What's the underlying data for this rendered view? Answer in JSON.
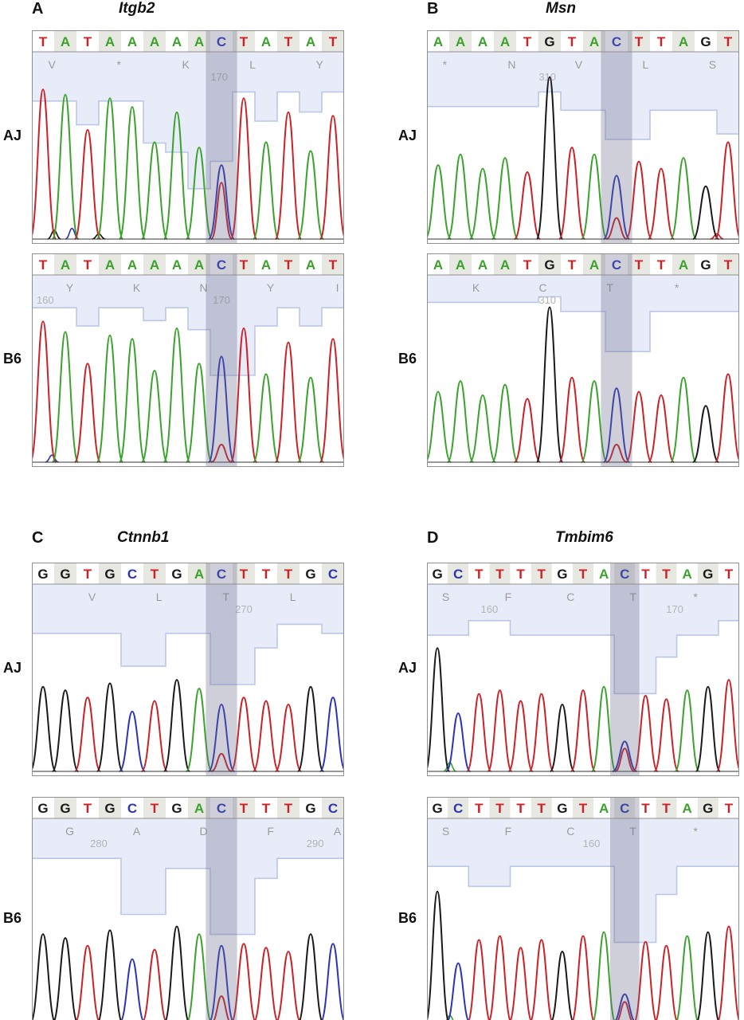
{
  "figure_type": "sanger-sequencing-chromatograms",
  "colors": {
    "A": "#3aa32c",
    "T": "#cc2127",
    "G": "#1a1a1a",
    "C": "#2d35b5",
    "quality_fill": "#e8ecf8",
    "quality_edge": "#bcc7e8",
    "highlight": "rgba(105,105,140,0.32)",
    "cell_even": "#ffffff",
    "cell_odd": "#e8e8e2",
    "aa_text": "#9b9b9b",
    "pos_text": "#b4b4b4",
    "box_border": "#8f8f8f",
    "baseline": "#333333"
  },
  "panels": [
    {
      "label": "A",
      "gene": "Itgb2",
      "highlight_index": 8,
      "traces": [
        {
          "strain": "AJ",
          "sequence": "TATAAAAACTATAT",
          "peak_heights": [
            0.85,
            0.82,
            0.62,
            0.8,
            0.75,
            0.55,
            0.72,
            0.52,
            0.42,
            0.8,
            0.55,
            0.72,
            0.5,
            0.7
          ],
          "quality_depths": [
            0.27,
            0.27,
            0.4,
            0.27,
            0.27,
            0.5,
            0.55,
            0.75,
            0.6,
            0.22,
            0.38,
            0.22,
            0.33,
            0.22
          ],
          "amino_acids": [
            {
              "l": "V",
              "i": 0.4
            },
            {
              "l": "*",
              "i": 3.4
            },
            {
              "l": "K",
              "i": 6.4
            },
            {
              "l": "L",
              "i": 9.4
            },
            {
              "l": "Y",
              "i": 12.4
            }
          ],
          "positions": [
            {
              "l": "170",
              "i": 7.9
            }
          ],
          "secondary": {
            "i": 8,
            "b": "T",
            "h": 0.32
          },
          "noise": [
            {
              "i": 0.5,
              "b": "G",
              "h": 0.05
            },
            {
              "i": 1.3,
              "b": "C",
              "h": 0.06
            },
            {
              "i": 2.5,
              "b": "G",
              "h": 0.03
            }
          ]
        },
        {
          "strain": "B6",
          "sequence": "TATAAAAACTATAT",
          "peak_heights": [
            0.8,
            0.74,
            0.56,
            0.72,
            0.7,
            0.52,
            0.76,
            0.56,
            0.6,
            0.76,
            0.5,
            0.68,
            0.48,
            0.7
          ],
          "quality_depths": [
            0.18,
            0.18,
            0.28,
            0.18,
            0.18,
            0.25,
            0.18,
            0.3,
            0.55,
            0.55,
            0.28,
            0.18,
            0.28,
            0.18
          ],
          "amino_acids": [
            {
              "l": "Y",
              "i": 1.2
            },
            {
              "l": "K",
              "i": 4.2
            },
            {
              "l": "N",
              "i": 7.2
            },
            {
              "l": "Y",
              "i": 10.2
            },
            {
              "l": "I",
              "i": 13.2
            }
          ],
          "positions": [
            {
              "l": "160",
              "i": 0.1
            },
            {
              "l": "170",
              "i": 8.0
            }
          ],
          "secondary": {
            "i": 8,
            "b": "T",
            "h": 0.1
          },
          "noise": [
            {
              "i": 0.4,
              "b": "C",
              "h": 0.04
            }
          ]
        }
      ]
    },
    {
      "label": "B",
      "gene": "Msn",
      "highlight_index": 8,
      "traces": [
        {
          "strain": "AJ",
          "sequence": "AAAATGTACTTAGT",
          "peak_heights": [
            0.42,
            0.48,
            0.4,
            0.46,
            0.38,
            0.92,
            0.52,
            0.48,
            0.36,
            0.44,
            0.4,
            0.46,
            0.3,
            0.55
          ],
          "quality_depths": [
            0.3,
            0.3,
            0.3,
            0.3,
            0.3,
            0.22,
            0.32,
            0.32,
            0.48,
            0.48,
            0.32,
            0.32,
            0.32,
            0.45
          ],
          "amino_acids": [
            {
              "l": "*",
              "i": 0.3
            },
            {
              "l": "N",
              "i": 3.3
            },
            {
              "l": "V",
              "i": 6.3
            },
            {
              "l": "L",
              "i": 9.3
            },
            {
              "l": "S",
              "i": 12.3
            }
          ],
          "positions": [
            {
              "l": "310",
              "i": 4.9
            }
          ],
          "secondary": {
            "i": 8,
            "b": "T",
            "h": 0.12
          },
          "noise": [
            {
              "i": 12.5,
              "b": "T",
              "h": 0.03
            }
          ]
        },
        {
          "strain": "B6",
          "sequence": "AAAATGTACTTAGT",
          "peak_heights": [
            0.4,
            0.46,
            0.38,
            0.44,
            0.36,
            0.88,
            0.48,
            0.46,
            0.42,
            0.4,
            0.38,
            0.48,
            0.32,
            0.5
          ],
          "quality_depths": [
            0.15,
            0.15,
            0.15,
            0.15,
            0.15,
            0.12,
            0.2,
            0.2,
            0.42,
            0.42,
            0.2,
            0.2,
            0.2,
            0.2
          ],
          "amino_acids": [
            {
              "l": "K",
              "i": 1.7
            },
            {
              "l": "C",
              "i": 4.7
            },
            {
              "l": "T",
              "i": 7.7
            },
            {
              "l": "*",
              "i": 10.7
            }
          ],
          "positions": [
            {
              "l": "310",
              "i": 4.9
            }
          ],
          "secondary": {
            "i": 8,
            "b": "T",
            "h": 0.1
          },
          "noise": []
        }
      ]
    },
    {
      "label": "C",
      "gene": "Ctnnb1",
      "highlight_index": 8,
      "traces": [
        {
          "strain": "AJ",
          "sequence": "GGTGCTGACTTTGC",
          "peak_heights": [
            0.48,
            0.46,
            0.42,
            0.5,
            0.34,
            0.4,
            0.52,
            0.47,
            0.38,
            0.42,
            0.4,
            0.38,
            0.48,
            0.42
          ],
          "quality_depths": [
            0.27,
            0.27,
            0.27,
            0.27,
            0.45,
            0.45,
            0.27,
            0.27,
            0.55,
            0.55,
            0.35,
            0.22,
            0.22,
            0.27
          ],
          "amino_acids": [
            {
              "l": "V",
              "i": 2.2
            },
            {
              "l": "L",
              "i": 5.2
            },
            {
              "l": "T",
              "i": 8.2
            },
            {
              "l": "L",
              "i": 11.2
            }
          ],
          "positions": [
            {
              "l": "270",
              "i": 9.0
            }
          ],
          "secondary": {
            "i": 8,
            "b": "T",
            "h": 0.1
          },
          "noise": []
        },
        {
          "strain": "B6",
          "sequence": "GGTGCTGACTTTGC",
          "peak_heights": [
            0.46,
            0.44,
            0.4,
            0.48,
            0.33,
            0.38,
            0.5,
            0.46,
            0.4,
            0.41,
            0.39,
            0.37,
            0.46,
            0.41
          ],
          "quality_depths": [
            0.2,
            0.2,
            0.2,
            0.2,
            0.48,
            0.48,
            0.25,
            0.25,
            0.58,
            0.58,
            0.3,
            0.2,
            0.2,
            0.2
          ],
          "amino_acids": [
            {
              "l": "G",
              "i": 1.2
            },
            {
              "l": "A",
              "i": 4.2
            },
            {
              "l": "D",
              "i": 7.2
            },
            {
              "l": "F",
              "i": 10.2
            },
            {
              "l": "A",
              "i": 13.2
            }
          ],
          "positions": [
            {
              "l": "280",
              "i": 2.5
            },
            {
              "l": "290",
              "i": 12.2
            }
          ],
          "secondary": {
            "i": 8,
            "b": "T",
            "h": 0.14
          },
          "noise": []
        }
      ]
    },
    {
      "label": "D",
      "gene": "Tmbim6",
      "highlight_index": 9,
      "traces": [
        {
          "strain": "AJ",
          "sequence": "GCTTTTGTACTTAGT",
          "peak_heights": [
            0.7,
            0.33,
            0.44,
            0.46,
            0.4,
            0.44,
            0.38,
            0.46,
            0.48,
            0.17,
            0.43,
            0.41,
            0.46,
            0.48,
            0.52
          ],
          "quality_depths": [
            0.28,
            0.28,
            0.2,
            0.2,
            0.28,
            0.28,
            0.28,
            0.28,
            0.28,
            0.6,
            0.6,
            0.4,
            0.28,
            0.28,
            0.2
          ],
          "amino_acids": [
            {
              "l": "S",
              "i": 0.4
            },
            {
              "l": "F",
              "i": 3.4
            },
            {
              "l": "C",
              "i": 6.4
            },
            {
              "l": "T",
              "i": 9.4
            },
            {
              "l": "*",
              "i": 12.4
            }
          ],
          "positions": [
            {
              "l": "160",
              "i": 2.5
            },
            {
              "l": "170",
              "i": 11.4
            }
          ],
          "secondary": {
            "i": 9,
            "b": "T",
            "h": 0.13
          },
          "noise": [
            {
              "i": 0.6,
              "b": "A",
              "h": 0.05
            }
          ]
        },
        {
          "strain": "B6",
          "sequence": "GCTTTTGTACTTAGT",
          "peak_heights": [
            0.68,
            0.31,
            0.43,
            0.45,
            0.39,
            0.43,
            0.37,
            0.45,
            0.47,
            0.15,
            0.42,
            0.4,
            0.45,
            0.47,
            0.5
          ],
          "quality_depths": [
            0.24,
            0.24,
            0.34,
            0.34,
            0.24,
            0.24,
            0.24,
            0.24,
            0.24,
            0.62,
            0.62,
            0.38,
            0.24,
            0.24,
            0.24
          ],
          "amino_acids": [
            {
              "l": "S",
              "i": 0.4
            },
            {
              "l": "F",
              "i": 3.4
            },
            {
              "l": "C",
              "i": 6.4
            },
            {
              "l": "T",
              "i": 9.4
            },
            {
              "l": "*",
              "i": 12.4
            }
          ],
          "positions": [
            {
              "l": "160",
              "i": 7.4
            }
          ],
          "secondary": {
            "i": 9,
            "b": "T",
            "h": 0.11
          },
          "noise": [
            {
              "i": 0.6,
              "b": "A",
              "h": 0.04
            }
          ]
        }
      ]
    }
  ]
}
